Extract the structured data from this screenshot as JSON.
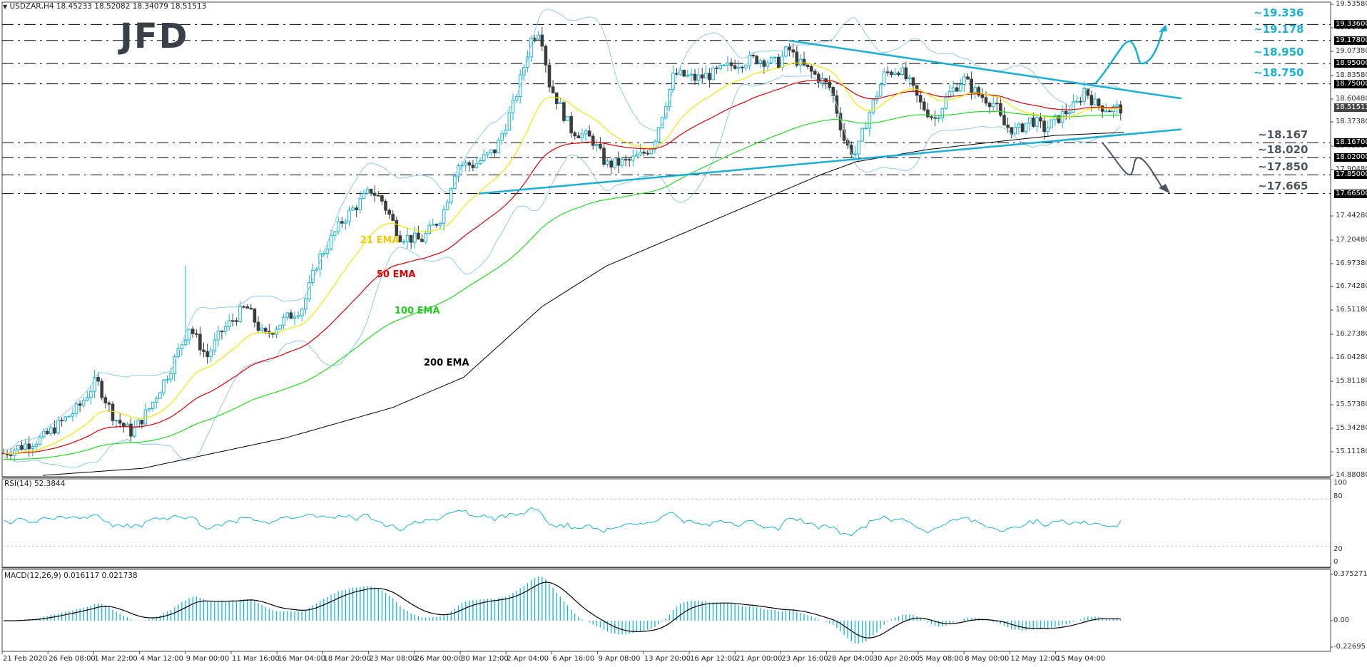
{
  "header": {
    "symbol_line": "USDZAR,H4  18.45233 18.52082 18.34079 18.51513",
    "collapse_icon": "triangle-down"
  },
  "logo": {
    "text": "JFD"
  },
  "colors": {
    "bull": "#14b4d8",
    "bear": "#3c3c3c",
    "ema21": "#f2e600",
    "ema50": "#e00000",
    "ema100": "#22dd22",
    "ema200": "#000000",
    "bollinger": "#8ccbec",
    "trendline": "#18b0d8",
    "up_scenario": "#18b0d8",
    "down_scenario": "#4a5560",
    "grid_dash": "#000000"
  },
  "price_axis": {
    "ticks": [
      "19.53580",
      "19.30480",
      "19.07380",
      "18.83580",
      "18.60480",
      "18.37380",
      "18.13380",
      "17.90480",
      "17.44280",
      "17.20480",
      "16.97380",
      "16.74280",
      "16.51180",
      "16.27380",
      "16.04280",
      "15.81180",
      "15.57380",
      "15.34280",
      "15.11180",
      "14.88080"
    ],
    "current_price": "18.51513",
    "level_tags": [
      "19.33600",
      "19.17800",
      "18.95000",
      "18.75000",
      "18.16700",
      "18.02000",
      "17.85000",
      "17.66500"
    ]
  },
  "levels": {
    "resistance": [
      {
        "label": "~19.336",
        "value": 19.336
      },
      {
        "label": "~19.178",
        "value": 19.178
      },
      {
        "label": "~18.950",
        "value": 18.95
      },
      {
        "label": "~18.750",
        "value": 18.75
      }
    ],
    "support": [
      {
        "label": "~18.167",
        "value": 18.167
      },
      {
        "label": "~18.020",
        "value": 18.02
      },
      {
        "label": "~17.850",
        "value": 17.85
      },
      {
        "label": "~17.665",
        "value": 17.665
      }
    ]
  },
  "ema_labels": {
    "ema21": "21 EMA",
    "ema50": "50 EMA",
    "ema100": "100 EMA",
    "ema200": "200 EMA"
  },
  "rsi": {
    "title": "RSI(14) 52.3844",
    "axis": [
      "100",
      "80",
      "20",
      "0"
    ]
  },
  "macd": {
    "title": "MACD(12,26,9) 0.016117 0.021738",
    "axis": [
      "0.375271",
      "0.00",
      "-0.22695"
    ]
  },
  "time_axis": [
    "21 Feb 2020",
    "26 Feb 08:00",
    "1 Mar 22:00",
    "4 Mar 12:00",
    "9 Mar 00:00",
    "11 Mar 16:00",
    "16 Mar 04:00",
    "18 Mar 20:00",
    "23 Mar 08:00",
    "26 Mar 00:00",
    "30 Mar 12:00",
    "2 Apr 04:00",
    "6 Apr 16:00",
    "9 Apr 08:00",
    "13 Apr 20:00",
    "16 Apr 12:00",
    "21 Apr 00:00",
    "23 Apr 16:00",
    "28 Apr 04:00",
    "30 Apr 20:00",
    "5 May 08:00",
    "8 May 00:00",
    "12 May 12:00",
    "15 May 04:00"
  ],
  "chart_data": {
    "type": "line",
    "title": "USDZAR,H4",
    "subtitle": "O 18.45233 H 18.52082 L 18.34079 C 18.51513",
    "xlabel": "",
    "ylabel": "",
    "ylim": [
      14.8808,
      19.5358
    ],
    "grid": false,
    "legend_position": "inline-annotations",
    "categories": [
      "21 Feb",
      "26 Feb",
      "1 Mar",
      "4 Mar",
      "9 Mar",
      "11 Mar",
      "16 Mar",
      "18 Mar",
      "23 Mar",
      "26 Mar",
      "30 Mar",
      "2 Apr",
      "6 Apr",
      "9 Apr",
      "13 Apr",
      "16 Apr",
      "21 Apr",
      "23 Apr",
      "28 Apr",
      "30 Apr",
      "5 May",
      "8 May",
      "12 May",
      "15 May"
    ],
    "series": [
      {
        "name": "Close (approx)",
        "values": [
          15.12,
          15.45,
          15.62,
          15.35,
          15.9,
          16.3,
          16.55,
          17.3,
          17.6,
          17.5,
          18.0,
          18.9,
          18.3,
          17.95,
          18.05,
          18.75,
          18.9,
          18.95,
          18.2,
          18.75,
          18.5,
          18.35,
          18.55,
          18.52
        ]
      },
      {
        "name": "21 EMA",
        "values": [
          15.1,
          15.35,
          15.55,
          15.45,
          15.8,
          16.2,
          16.4,
          17.0,
          17.5,
          17.45,
          17.8,
          18.5,
          18.6,
          18.1,
          18.0,
          18.5,
          18.8,
          18.95,
          18.4,
          18.45,
          18.55,
          18.4,
          18.45,
          18.5
        ]
      },
      {
        "name": "50 EMA",
        "values": [
          14.98,
          15.1,
          15.3,
          15.35,
          15.5,
          15.8,
          16.0,
          16.5,
          17.0,
          17.25,
          17.5,
          17.9,
          18.2,
          18.2,
          18.15,
          18.4,
          18.7,
          18.85,
          18.6,
          18.55,
          18.6,
          18.5,
          18.5,
          18.5
        ]
      },
      {
        "name": "100 EMA",
        "values": [
          14.92,
          15.0,
          15.1,
          15.2,
          15.3,
          15.5,
          15.7,
          16.0,
          16.4,
          16.7,
          17.0,
          17.4,
          17.65,
          17.8,
          17.95,
          18.15,
          18.35,
          18.5,
          18.5,
          18.5,
          18.5,
          18.5,
          18.52,
          18.52
        ]
      },
      {
        "name": "200 EMA",
        "values": [
          14.8,
          14.85,
          14.9,
          14.95,
          15.05,
          15.2,
          15.35,
          15.6,
          15.85,
          16.05,
          16.35,
          16.7,
          17.05,
          17.25,
          17.45,
          17.65,
          17.85,
          17.98,
          18.05,
          18.1,
          18.15,
          18.2,
          18.23,
          18.26
        ]
      }
    ],
    "annotations": [
      "~19.336",
      "~19.178",
      "~18.950",
      "~18.750",
      "~18.167",
      "~18.020",
      "~17.850",
      "~17.665",
      "21 EMA",
      "50 EMA",
      "100 EMA",
      "200 EMA"
    ],
    "trendlines": [
      {
        "name": "downtrend resistance",
        "from": [
          "23 Apr 16:00",
          19.178
        ],
        "to": [
          "15 May",
          18.6
        ]
      },
      {
        "name": "uptrend support",
        "from": [
          "30 Mar 12:00",
          17.665
        ],
        "to": [
          "15 May",
          18.3
        ]
      }
    ],
    "indicators": {
      "rsi": {
        "period": 14,
        "last": 52.3844,
        "levels": [
          20,
          80
        ],
        "range": [
          0,
          100
        ]
      },
      "macd": {
        "params": [
          12,
          26,
          9
        ],
        "main": 0.016117,
        "signal": 0.021738,
        "range": [
          -0.22695,
          0.375271
        ]
      }
    }
  }
}
